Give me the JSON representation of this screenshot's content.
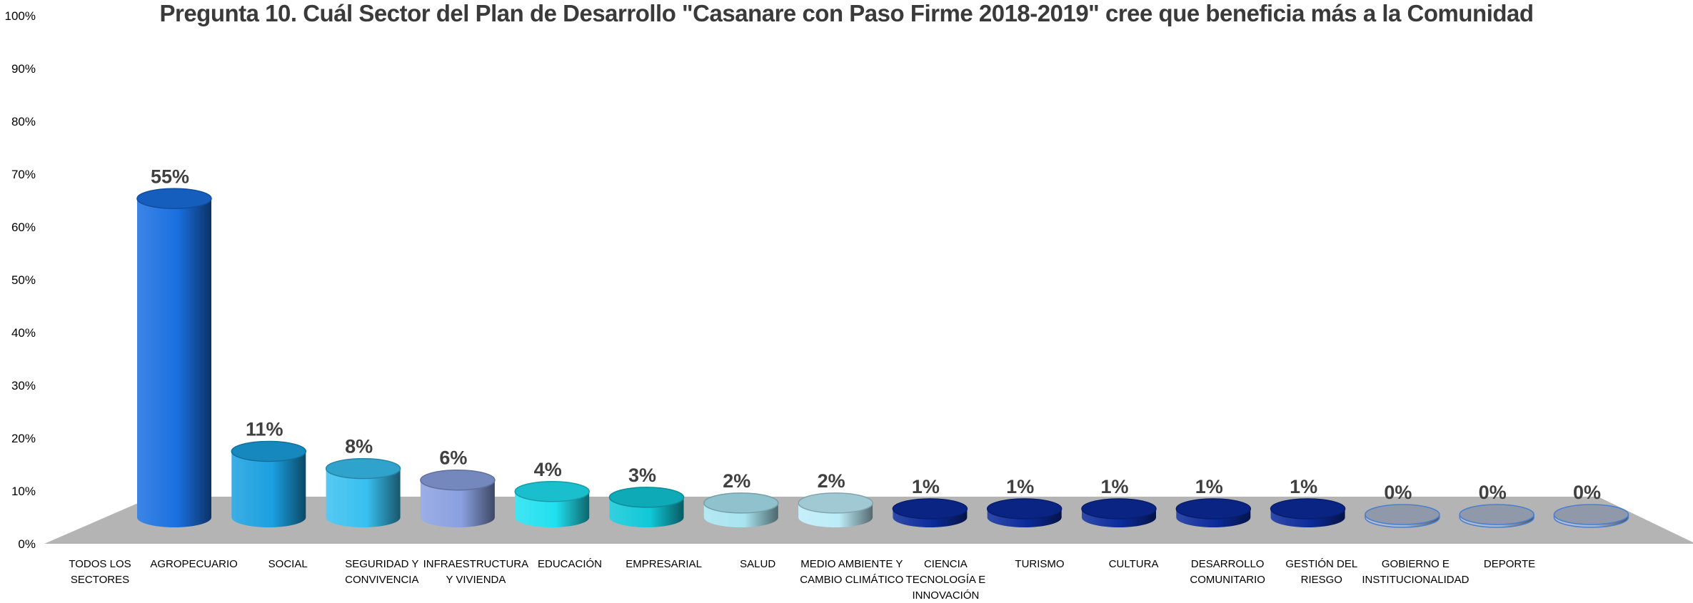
{
  "colors": {
    "floor": "#b4b4b4",
    "dark_blue": "#0b2a9a",
    "outline": "#4a7fd0"
  },
  "chart_data": {
    "type": "bar",
    "title": "Pregunta 10. Cuál Sector del Plan de Desarrollo \"Casanare con Paso Firme 2018-2019\" cree que beneficia más a la Comunidad",
    "xlabel": "",
    "ylabel": "",
    "ylim": [
      0,
      100
    ],
    "yticks": [
      "0%",
      "10%",
      "20%",
      "30%",
      "40%",
      "50%",
      "60%",
      "70%",
      "80%",
      "90%",
      "100%"
    ],
    "categories": [
      "TODOS LOS SECTORES",
      "AGROPECUARIO",
      "SOCIAL",
      "SEGURIDAD Y CONVIVENCIA",
      "INFRAESTRUCTURA Y VIVIENDA",
      "EDUCACIÓN",
      "EMPRESARIAL",
      "SALUD",
      "MEDIO AMBIENTE Y CAMBIO CLIMÁTICO",
      "CIENCIA TECNOLOGÍA E INNOVACIÓN",
      "TURISMO",
      "CULTURA",
      "DESARROLLO COMUNITARIO",
      "GESTIÓN DEL RIESGO",
      "GOBIERNO E INSTITUCIONALIDAD",
      "DEPORTE"
    ],
    "category_lines": [
      [
        "TODOS LOS",
        "SECTORES"
      ],
      [
        "AGROPECUARIO"
      ],
      [
        "SOCIAL"
      ],
      [
        "SEGURIDAD Y",
        "CONVIVENCIA"
      ],
      [
        "INFRAESTRUCTURA",
        "Y VIVIENDA"
      ],
      [
        "EDUCACIÓN"
      ],
      [
        "EMPRESARIAL"
      ],
      [
        "SALUD"
      ],
      [
        "MEDIO AMBIENTE Y",
        "CAMBIO CLIMÁTICO"
      ],
      [
        "CIENCIA",
        "TECNOLOGÍA E",
        "INNOVACIÓN"
      ],
      [
        "TURISMO"
      ],
      [
        "CULTURA"
      ],
      [
        "DESARROLLO",
        "COMUNITARIO"
      ],
      [
        "GESTIÓN DEL",
        "RIESGO"
      ],
      [
        "GOBIERNO E",
        "INSTITUCIONALIDAD"
      ],
      [
        "DEPORTE"
      ]
    ],
    "values": [
      55,
      11,
      8,
      6,
      4,
      3,
      2,
      2,
      1,
      1,
      1,
      1,
      1,
      0,
      0,
      0
    ],
    "data_labels": [
      "55%",
      "11%",
      "8%",
      "6%",
      "4%",
      "3%",
      "2%",
      "2%",
      "1%",
      "1%",
      "1%",
      "1%",
      "1%",
      "0%",
      "0%",
      "0%"
    ],
    "bar_colors": [
      "#1a6fe0",
      "#1aa0e0",
      "#38c0f0",
      "#8aa0e0",
      "#20e0f0",
      "#10c8d8",
      "#a8e4f0",
      "#bcecf8",
      "#0b2a9a",
      "#0b2a9a",
      "#0b2a9a",
      "#0b2a9a",
      "#0b2a9a",
      "#a8b4c8",
      "#a8b4c8",
      "#a8b4c8"
    ],
    "grid": false,
    "legend": "none"
  }
}
